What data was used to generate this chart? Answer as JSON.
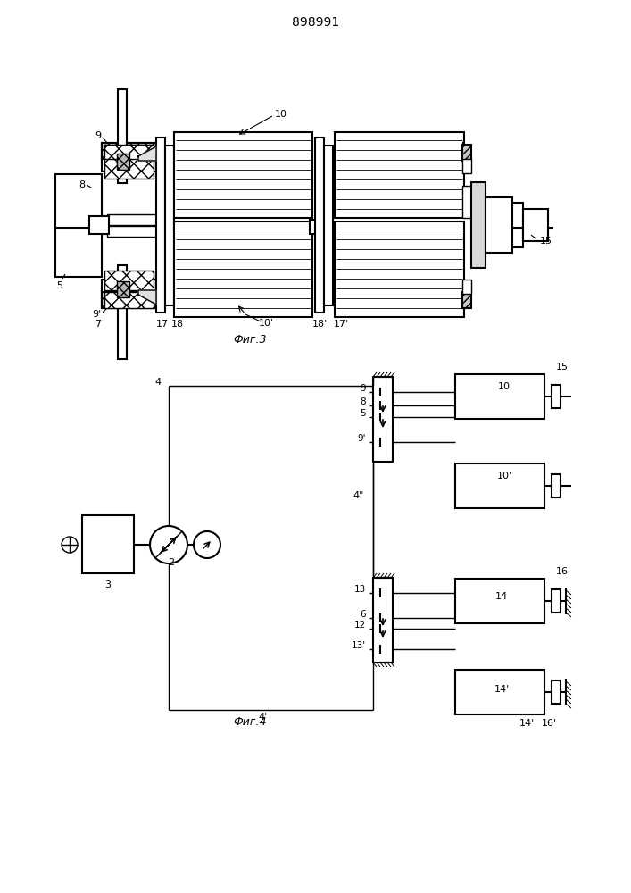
{
  "title": "898991",
  "fig3_label": "Фиг.3",
  "fig4_label": "Фиг.4",
  "bg_color": "#ffffff",
  "line_color": "#000000"
}
